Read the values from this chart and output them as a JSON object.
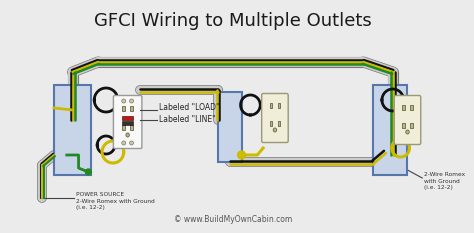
{
  "title": "GFCI Wiring to Multiple Outlets",
  "title_fontsize": 13,
  "bg_color": "#ebebeb",
  "border_color": "#bbbbbb",
  "website": "© www.BuildMyOwnCabin.com",
  "label_load": "Labeled \"LOAD\"",
  "label_line": "Labeled \"LINE\"",
  "label_power": "POWER SOURCE\n2-Wire Romex with Ground\n(i.e. 12-2)",
  "label_wire_right": "2-Wire Romex\nwith Ground\n(i.e. 12-2)",
  "wire_gray": "#aaaaaa",
  "wire_black": "#111111",
  "wire_yellow": "#ccbb00",
  "wire_green": "#228822",
  "box_fill": "#c8d4e8",
  "box_border": "#5577aa",
  "outlet_fill": "#f0edd8",
  "outlet_border": "#999977",
  "gfci_fill": "#f8f8f8",
  "gfci_border": "#999999"
}
